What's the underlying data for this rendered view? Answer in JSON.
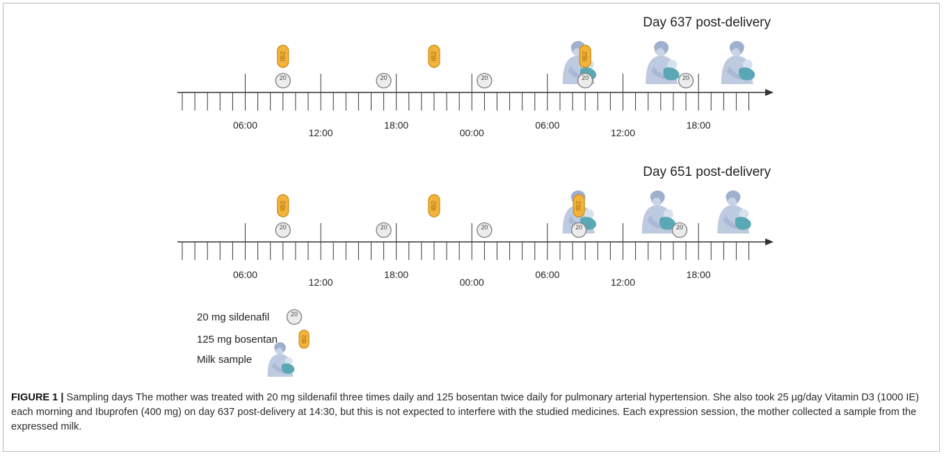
{
  "panels": [
    {
      "title": "Day 637 post-delivery",
      "time_labels": [
        "06:00",
        "12:00",
        "18:00",
        "00:00",
        "06:00",
        "12:00",
        "18:00"
      ],
      "sildenafil_hours": [
        8,
        16,
        24,
        32,
        40
      ],
      "bosentan_hours": [
        8,
        20,
        32
      ],
      "milk_hours": [
        31.2,
        37.8,
        43.8
      ]
    },
    {
      "title": "Day 651 post-delivery",
      "time_labels": [
        "06:00",
        "12:00",
        "18:00",
        "00:00",
        "06:00",
        "12:00",
        "18:00"
      ],
      "sildenafil_hours": [
        8,
        16,
        24,
        31.5,
        39.5
      ],
      "bosentan_hours": [
        8,
        20,
        31.5
      ],
      "milk_hours": [
        31.2,
        37.5,
        43.5
      ]
    }
  ],
  "pill_text": {
    "sildenafil": "20",
    "bosentan": "IB2"
  },
  "legend": {
    "sildenafil": "20 mg sildenafil",
    "bosentan": "125 mg bosentan",
    "milk": "Milk sample"
  },
  "caption": {
    "label": "FIGURE 1 |",
    "text": " Sampling days The mother was treated with 20 mg sildenafil three times daily and 125 bosentan twice daily for pulmonary arterial hypertension. She also took 25 µg/day Vitamin D3 (1000 IE) each morning and Ibuprofen (400 mg) on day 637 post-delivery at 14:30, but this is not expected to interfere with the studied medicines. Each expression session, the mother collected a sample from the expressed milk."
  },
  "colors": {
    "pill_fill": "#f2b33a",
    "pill_stroke": "#c98a16",
    "pill_text": "#a5650a",
    "tablet_fill": "#ececec",
    "tablet_stroke": "#7a7a7a",
    "mother": "#b7c4dc",
    "baby": "#5aa7b5",
    "axis": "#333333"
  }
}
